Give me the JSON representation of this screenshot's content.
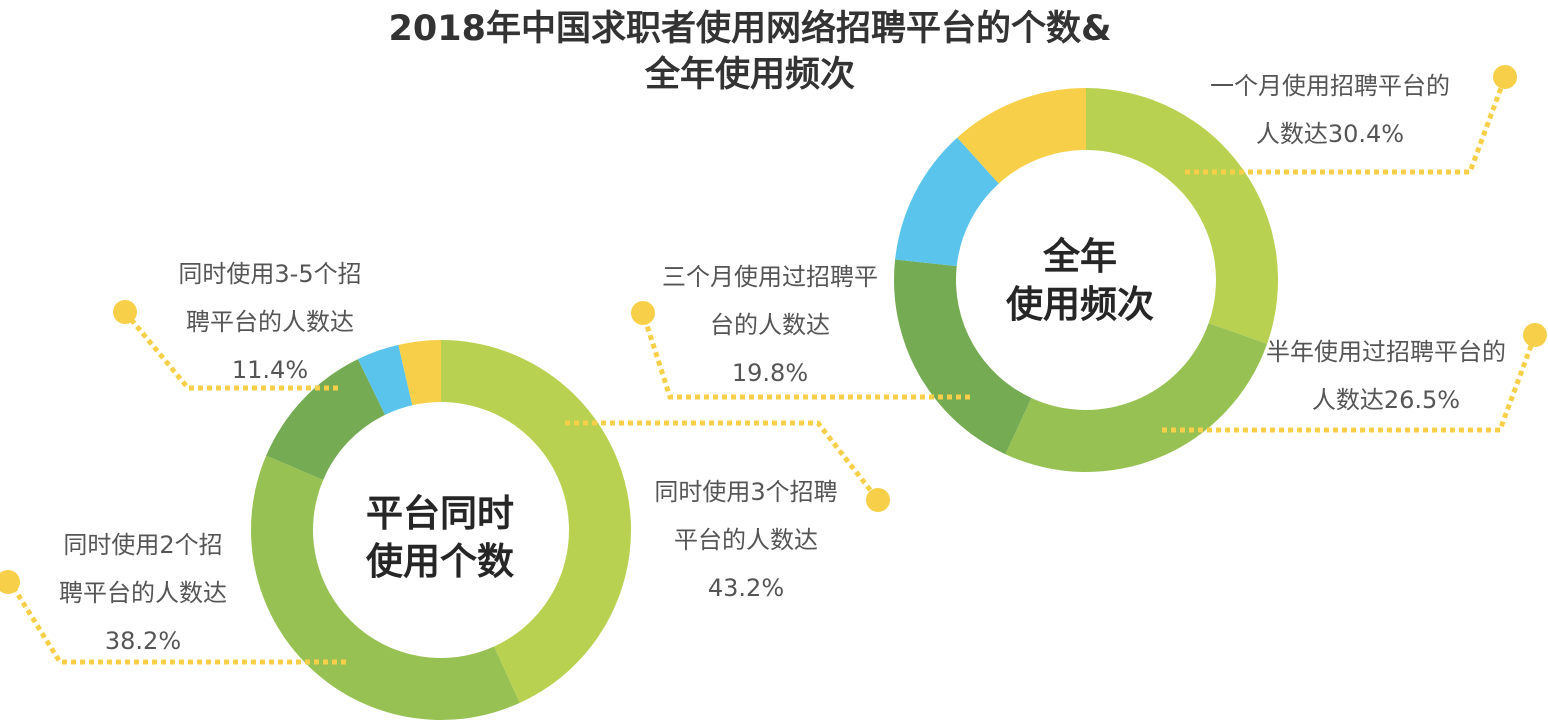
{
  "title": {
    "line1": "2018年中国求职者使用网络招聘平台的个数&",
    "line2": "全年使用频次"
  },
  "chart_data": [
    {
      "type": "pie",
      "center_label": [
        "平台同时",
        "使用个数"
      ],
      "slices": [
        {
          "label": [
            "同时使用3个招聘",
            "平台的人数达",
            "43.2%"
          ],
          "value": 43.2,
          "color": "#b8d151"
        },
        {
          "label": [
            "同时使用2个招",
            "聘平台的人数达",
            "38.2%"
          ],
          "value": 38.2,
          "color": "#97c152"
        },
        {
          "label": [
            "同时使用3-5个招",
            "聘平台的人数达",
            "11.4%"
          ],
          "value": 11.4,
          "color": "#75ab52"
        },
        {
          "value": 3.6,
          "color": "#5bc4ed"
        },
        {
          "value": 3.6,
          "color": "#f8cf48"
        }
      ]
    },
    {
      "type": "pie",
      "center_label": [
        "全年",
        "使用频次"
      ],
      "slices": [
        {
          "label": [
            "一个月使用招聘平台的",
            "人数达30.4%"
          ],
          "value": 30.4,
          "color": "#b8d151"
        },
        {
          "label": [
            "半年使用过招聘平台的",
            "人数达26.5%"
          ],
          "value": 26.5,
          "color": "#97c152"
        },
        {
          "label": [
            "三个月使用过招聘平",
            "台的人数达",
            "19.8%"
          ],
          "value": 19.8,
          "color": "#75ab52"
        },
        {
          "value": 11.6,
          "color": "#5bc4ed"
        },
        {
          "value": 11.7,
          "color": "#f8cf48"
        }
      ]
    }
  ],
  "connector_color": "#f8cf48"
}
